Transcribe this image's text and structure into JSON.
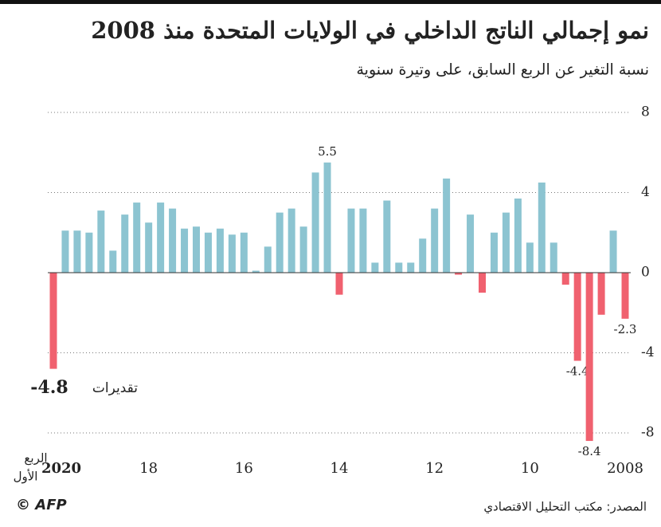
{
  "chart_data": {
    "type": "bar",
    "title": "نمو إجمالي الناتج الداخلي في الولايات المتحدة منذ 2008",
    "subtitle": "نسبة التغير عن الربع السابق، على وتيرة سنوية",
    "x_label": [
      "الربع",
      "الأول"
    ],
    "annotation": "تقديرات",
    "source": "المصدر: مكتب التحليل الاقتصادي",
    "credit": "© AFP",
    "categories": [
      "2020",
      null,
      null,
      null,
      null,
      null,
      null,
      null,
      "18",
      null,
      null,
      null,
      null,
      null,
      null,
      null,
      "16",
      null,
      null,
      null,
      null,
      null,
      null,
      null,
      "14",
      null,
      null,
      null,
      null,
      null,
      null,
      null,
      "12",
      null,
      null,
      null,
      null,
      null,
      null,
      null,
      "10",
      null,
      null,
      null,
      null,
      null,
      null,
      null,
      "2008"
    ],
    "values": [
      -4.8,
      2.1,
      2.1,
      2.0,
      3.1,
      1.1,
      2.9,
      3.5,
      2.5,
      3.5,
      3.2,
      2.2,
      2.3,
      2.0,
      2.2,
      1.9,
      2.0,
      0.1,
      1.3,
      3.0,
      3.2,
      2.3,
      5.0,
      5.5,
      -1.1,
      3.2,
      3.2,
      0.5,
      3.6,
      0.5,
      0.5,
      1.7,
      3.2,
      4.7,
      -0.1,
      2.9,
      -1.0,
      2.0,
      3.0,
      3.7,
      1.5,
      4.5,
      1.5,
      -0.6,
      -4.4,
      -8.4,
      -2.1,
      2.1,
      -2.3
    ],
    "value_labels": [
      "-4.8",
      null,
      null,
      null,
      null,
      null,
      null,
      null,
      null,
      null,
      null,
      null,
      null,
      null,
      null,
      null,
      null,
      null,
      null,
      null,
      null,
      null,
      null,
      "5.5",
      null,
      null,
      null,
      null,
      null,
      null,
      null,
      null,
      null,
      null,
      null,
      null,
      null,
      null,
      null,
      null,
      null,
      null,
      null,
      null,
      "-4.4",
      "-8.4",
      null,
      null,
      "-2.3"
    ],
    "positive_color": "#8cc4d1",
    "negative_color": "#f0616f",
    "ylim": [
      -8,
      8
    ],
    "yticks": [
      8,
      4,
      0,
      -4,
      -8
    ],
    "grid": true
  }
}
